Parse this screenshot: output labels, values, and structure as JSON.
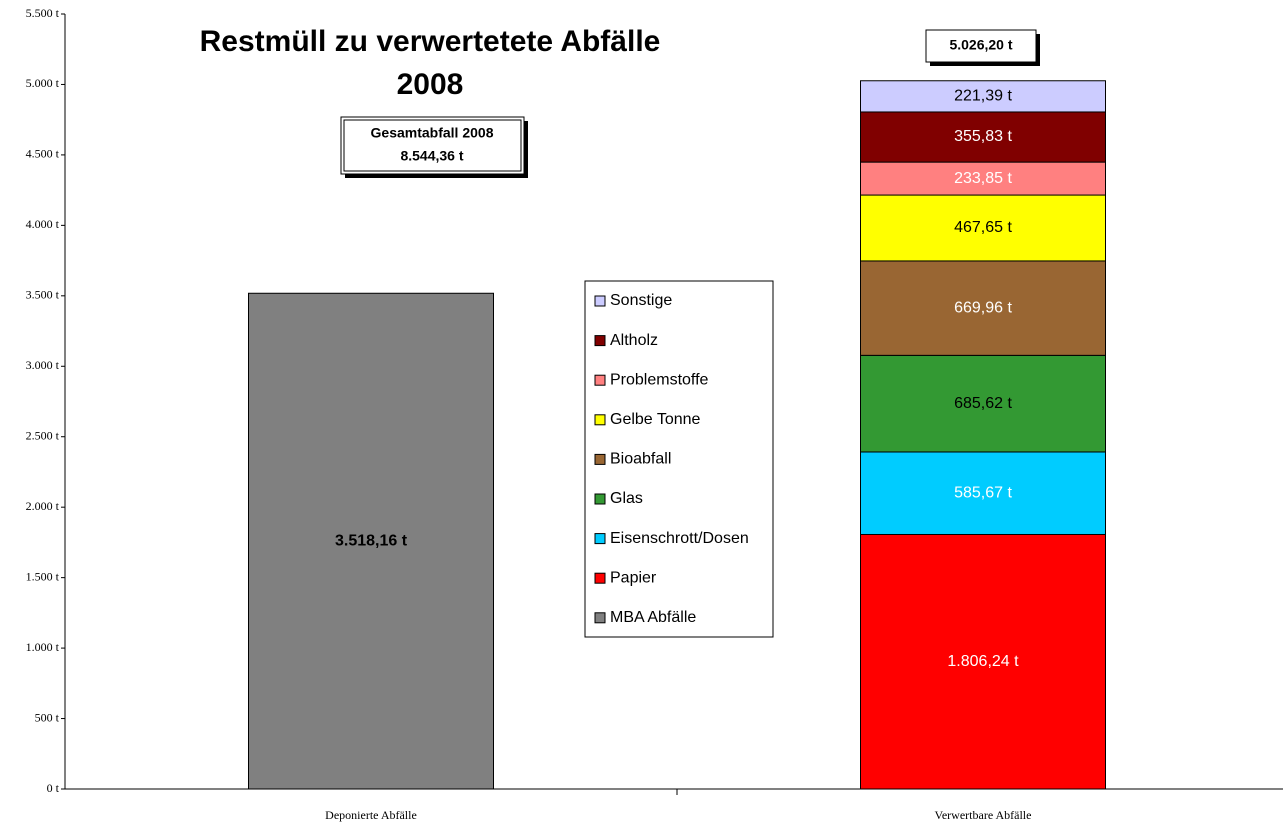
{
  "chart_data": {
    "type": "stacked_bar",
    "title": "Restmüll zu verwertetete Abfälle",
    "subtitle": "2008",
    "annotations": [
      "Gesamtabfall 2008",
      "8.544,36 t",
      "5.026,20 t"
    ],
    "categories": [
      "Deponierte Abfälle",
      "Verwertbare Abfälle"
    ],
    "series": [
      {
        "name": "MBA Abfälle",
        "color": "#808080",
        "label_color": "#000000",
        "values": [
          3518.16,
          null
        ],
        "value_labels": [
          "3.518,16 t",
          null
        ]
      },
      {
        "name": "Papier",
        "color": "#ff0000",
        "label_color": "#ffffff",
        "values": [
          null,
          1806.24
        ],
        "value_labels": [
          null,
          "1.806,24 t"
        ]
      },
      {
        "name": "Eisenschrott/Dosen",
        "color": "#00ccff",
        "label_color": "#ffffff",
        "values": [
          null,
          585.67
        ],
        "value_labels": [
          null,
          "585,67 t"
        ]
      },
      {
        "name": "Glas",
        "color": "#339933",
        "label_color": "#000000",
        "values": [
          null,
          685.62
        ],
        "value_labels": [
          null,
          "685,62 t"
        ]
      },
      {
        "name": "Bioabfall",
        "color": "#996633",
        "label_color": "#ffffff",
        "values": [
          null,
          669.96
        ],
        "value_labels": [
          null,
          "669,96 t"
        ]
      },
      {
        "name": "Gelbe Tonne",
        "color": "#ffff00",
        "label_color": "#000000",
        "values": [
          null,
          467.65
        ],
        "value_labels": [
          null,
          "467,65 t"
        ]
      },
      {
        "name": "Problemstoffe",
        "color": "#ff8080",
        "label_color": "#ffffff",
        "values": [
          null,
          233.85
        ],
        "value_labels": [
          null,
          "233,85 t"
        ]
      },
      {
        "name": "Altholz",
        "color": "#800000",
        "label_color": "#ffffff",
        "values": [
          null,
          355.83
        ],
        "value_labels": [
          null,
          "355,83 t"
        ]
      },
      {
        "name": "Sonstige",
        "color": "#ccccff",
        "label_color": "#000000",
        "values": [
          null,
          221.39
        ],
        "value_labels": [
          null,
          "221,39 t"
        ]
      }
    ],
    "ylim": [
      0,
      5500
    ],
    "yticks": [
      {
        "value": 0,
        "label": "0 t"
      },
      {
        "value": 500,
        "label": "500 t"
      },
      {
        "value": 1000,
        "label": "1.000 t"
      },
      {
        "value": 1500,
        "label": "1.500 t"
      },
      {
        "value": 2000,
        "label": "2.000 t"
      },
      {
        "value": 2500,
        "label": "2.500 t"
      },
      {
        "value": 3000,
        "label": "3.000 t"
      },
      {
        "value": 3500,
        "label": "3.500 t"
      },
      {
        "value": 4000,
        "label": "4.000 t"
      },
      {
        "value": 4500,
        "label": "4.500 t"
      },
      {
        "value": 5000,
        "label": "5.000 t"
      },
      {
        "value": 5500,
        "label": "5.500 t"
      }
    ],
    "grid": false,
    "legend": "center"
  }
}
